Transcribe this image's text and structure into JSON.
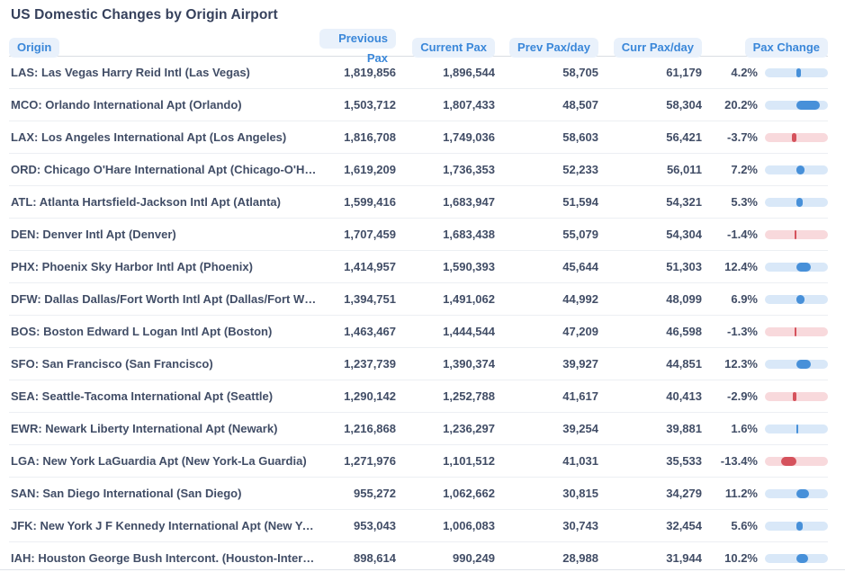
{
  "title": "US Domestic Changes by Origin Airport",
  "columns": [
    {
      "key": "origin",
      "label": "Origin"
    },
    {
      "key": "previous_pax",
      "label": "Previous Pax"
    },
    {
      "key": "current_pax",
      "label": "Current Pax"
    },
    {
      "key": "prev_pax_day",
      "label": "Prev Pax/day"
    },
    {
      "key": "curr_pax_day",
      "label": "Curr Pax/day"
    },
    {
      "key": "pax_change",
      "label": "Pax Change"
    }
  ],
  "rows": [
    {
      "origin": "LAS: Las Vegas Harry Reid Intl (Las Vegas)",
      "previous_pax": "1,819,856",
      "current_pax": "1,896,544",
      "prev_pax_day": "58,705",
      "curr_pax_day": "61,179",
      "change_label": "4.2%",
      "change_pct": 4.2
    },
    {
      "origin": "MCO: Orlando International Apt (Orlando)",
      "previous_pax": "1,503,712",
      "current_pax": "1,807,433",
      "prev_pax_day": "48,507",
      "curr_pax_day": "58,304",
      "change_label": "20.2%",
      "change_pct": 20.2
    },
    {
      "origin": "LAX: Los Angeles International Apt (Los Angeles)",
      "previous_pax": "1,816,708",
      "current_pax": "1,749,036",
      "prev_pax_day": "58,603",
      "curr_pax_day": "56,421",
      "change_label": "-3.7%",
      "change_pct": -3.7
    },
    {
      "origin": "ORD: Chicago O'Hare International Apt (Chicago-O'Ha…",
      "previous_pax": "1,619,209",
      "current_pax": "1,736,353",
      "prev_pax_day": "52,233",
      "curr_pax_day": "56,011",
      "change_label": "7.2%",
      "change_pct": 7.2
    },
    {
      "origin": "ATL: Atlanta Hartsfield-Jackson Intl Apt (Atlanta)",
      "previous_pax": "1,599,416",
      "current_pax": "1,683,947",
      "prev_pax_day": "51,594",
      "curr_pax_day": "54,321",
      "change_label": "5.3%",
      "change_pct": 5.3
    },
    {
      "origin": "DEN: Denver Intl Apt (Denver)",
      "previous_pax": "1,707,459",
      "current_pax": "1,683,438",
      "prev_pax_day": "55,079",
      "curr_pax_day": "54,304",
      "change_label": "-1.4%",
      "change_pct": -1.4
    },
    {
      "origin": "PHX: Phoenix Sky Harbor Intl Apt (Phoenix)",
      "previous_pax": "1,414,957",
      "current_pax": "1,590,393",
      "prev_pax_day": "45,644",
      "curr_pax_day": "51,303",
      "change_label": "12.4%",
      "change_pct": 12.4
    },
    {
      "origin": "DFW: Dallas Dallas/Fort Worth Intl Apt (Dallas/Fort W…",
      "previous_pax": "1,394,751",
      "current_pax": "1,491,062",
      "prev_pax_day": "44,992",
      "curr_pax_day": "48,099",
      "change_label": "6.9%",
      "change_pct": 6.9
    },
    {
      "origin": "BOS: Boston Edward L Logan Intl Apt (Boston)",
      "previous_pax": "1,463,467",
      "current_pax": "1,444,544",
      "prev_pax_day": "47,209",
      "curr_pax_day": "46,598",
      "change_label": "-1.3%",
      "change_pct": -1.3
    },
    {
      "origin": "SFO: San Francisco (San Francisco)",
      "previous_pax": "1,237,739",
      "current_pax": "1,390,374",
      "prev_pax_day": "39,927",
      "curr_pax_day": "44,851",
      "change_label": "12.3%",
      "change_pct": 12.3
    },
    {
      "origin": "SEA: Seattle-Tacoma International Apt (Seattle)",
      "previous_pax": "1,290,142",
      "current_pax": "1,252,788",
      "prev_pax_day": "41,617",
      "curr_pax_day": "40,413",
      "change_label": "-2.9%",
      "change_pct": -2.9
    },
    {
      "origin": "EWR: Newark Liberty International Apt (Newark)",
      "previous_pax": "1,216,868",
      "current_pax": "1,236,297",
      "prev_pax_day": "39,254",
      "curr_pax_day": "39,881",
      "change_label": "1.6%",
      "change_pct": 1.6
    },
    {
      "origin": "LGA: New York LaGuardia Apt (New York-La Guardia)",
      "previous_pax": "1,271,976",
      "current_pax": "1,101,512",
      "prev_pax_day": "41,031",
      "curr_pax_day": "35,533",
      "change_label": "-13.4%",
      "change_pct": -13.4
    },
    {
      "origin": "SAN: San Diego International (San Diego)",
      "previous_pax": "955,272",
      "current_pax": "1,062,662",
      "prev_pax_day": "30,815",
      "curr_pax_day": "34,279",
      "change_label": "11.2%",
      "change_pct": 11.2
    },
    {
      "origin": "JFK: New York J F Kennedy International Apt (New Yor…",
      "previous_pax": "953,043",
      "current_pax": "1,006,083",
      "prev_pax_day": "30,743",
      "curr_pax_day": "32,454",
      "change_label": "5.6%",
      "change_pct": 5.6
    },
    {
      "origin": "IAH: Houston George Bush Intercont. (Houston-Interco…",
      "previous_pax": "898,614",
      "current_pax": "990,249",
      "prev_pax_day": "28,988",
      "curr_pax_day": "31,944",
      "change_label": "10.2%",
      "change_pct": 10.2
    }
  ],
  "colors": {
    "header_pill_bg": "#e9f1fb",
    "header_text": "#3a87d9",
    "title_text": "#36415c",
    "cell_text": "#414d66",
    "positive_track": "#d9e8f8",
    "positive_fill": "#4790d9",
    "negative_track": "#f8d9dc",
    "negative_fill": "#d5525c",
    "row_separator": "#eceff3"
  },
  "bar_scale": {
    "min": -27.5,
    "max": 27.5
  },
  "chart_data": {
    "type": "table",
    "title": "US Domestic Changes by Origin Airport",
    "columns": [
      "Origin",
      "Previous Pax",
      "Current Pax",
      "Prev Pax/day",
      "Curr Pax/day",
      "Pax Change"
    ],
    "rows": [
      [
        "LAS: Las Vegas Harry Reid Intl (Las Vegas)",
        1819856,
        1896544,
        58705,
        61179,
        4.2
      ],
      [
        "MCO: Orlando International Apt (Orlando)",
        1503712,
        1807433,
        48507,
        58304,
        20.2
      ],
      [
        "LAX: Los Angeles International Apt (Los Angeles)",
        1816708,
        1749036,
        58603,
        56421,
        -3.7
      ],
      [
        "ORD: Chicago O'Hare International Apt (Chicago-O'Hare)",
        1619209,
        1736353,
        52233,
        56011,
        7.2
      ],
      [
        "ATL: Atlanta Hartsfield-Jackson Intl Apt (Atlanta)",
        1599416,
        1683947,
        51594,
        54321,
        5.3
      ],
      [
        "DEN: Denver Intl Apt (Denver)",
        1707459,
        1683438,
        55079,
        54304,
        -1.4
      ],
      [
        "PHX: Phoenix Sky Harbor Intl Apt (Phoenix)",
        1414957,
        1590393,
        45644,
        51303,
        12.4
      ],
      [
        "DFW: Dallas Dallas/Fort Worth Intl Apt (Dallas/Fort Worth)",
        1394751,
        1491062,
        44992,
        48099,
        6.9
      ],
      [
        "BOS: Boston Edward L Logan Intl Apt (Boston)",
        1463467,
        1444544,
        47209,
        46598,
        -1.3
      ],
      [
        "SFO: San Francisco (San Francisco)",
        1237739,
        1390374,
        39927,
        44851,
        12.3
      ],
      [
        "SEA: Seattle-Tacoma International Apt (Seattle)",
        1290142,
        1252788,
        41617,
        40413,
        -2.9
      ],
      [
        "EWR: Newark Liberty International Apt (Newark)",
        1216868,
        1236297,
        39254,
        39881,
        1.6
      ],
      [
        "LGA: New York LaGuardia Apt (New York-La Guardia)",
        1271976,
        1101512,
        41031,
        35533,
        -13.4
      ],
      [
        "SAN: San Diego International (San Diego)",
        955272,
        1062662,
        30815,
        34279,
        11.2
      ],
      [
        "JFK: New York J F Kennedy International Apt (New York)",
        953043,
        1006083,
        30743,
        32454,
        5.6
      ],
      [
        "IAH: Houston George Bush Intercont. (Houston-Intercontinental)",
        898614,
        990249,
        28988,
        31944,
        10.2
      ]
    ],
    "pax_change_bar": {
      "type": "bar",
      "orientation": "horizontal-inline",
      "axis_min": -27.5,
      "axis_max": 27.5,
      "zero_at_center": true
    }
  }
}
